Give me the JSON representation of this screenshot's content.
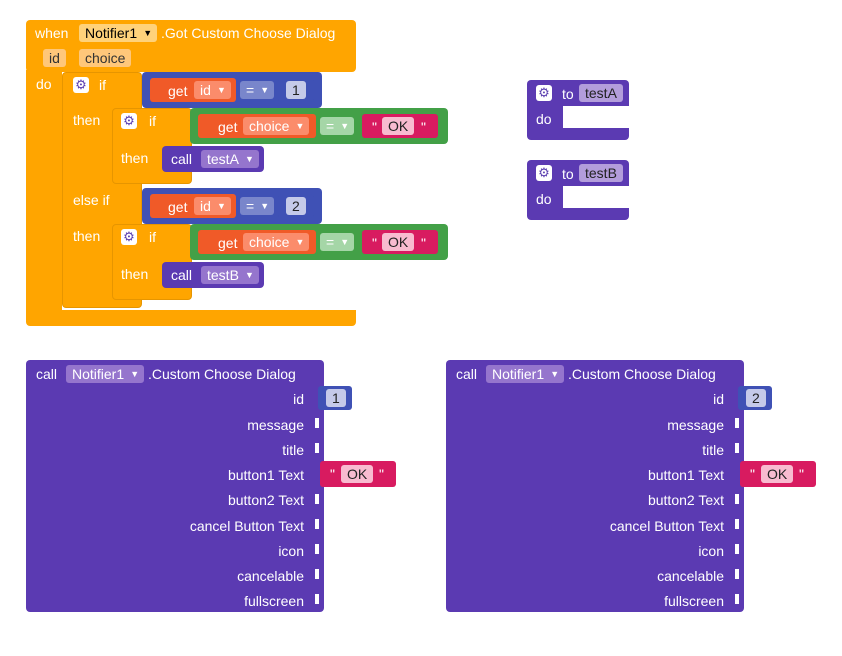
{
  "event_block": {
    "when": "when",
    "component": "Notifier1",
    "event": ".Got Custom Choose Dialog",
    "param_id": "id",
    "param_choice": "choice",
    "do": "do",
    "if_label": "if",
    "then_label": "then",
    "else_if_label": "else if",
    "get_label": "get",
    "eq": "=",
    "num1": "1",
    "num2": "2",
    "ok": "OK",
    "call_label": "call",
    "testA": "testA",
    "testB": "testB"
  },
  "proc_a": {
    "to": "to",
    "name": "testA",
    "do": "do"
  },
  "proc_b": {
    "to": "to",
    "name": "testB",
    "do": "do"
  },
  "call_blocks": [
    {
      "call": "call",
      "component": "Notifier1",
      "method": ".Custom Choose Dialog",
      "id_value": "1",
      "button1_text": "OK",
      "sockets": [
        "id",
        "message",
        "title",
        "button1 Text",
        "button2 Text",
        "cancel Button Text",
        "icon",
        "cancelable",
        "fullscreen"
      ]
    },
    {
      "call": "call",
      "component": "Notifier1",
      "method": ".Custom Choose Dialog",
      "id_value": "2",
      "button1_text": "OK",
      "sockets": [
        "id",
        "message",
        "title",
        "button1 Text",
        "button2 Text",
        "cancel Button Text",
        "icon",
        "cancelable",
        "fullscreen"
      ]
    }
  ],
  "colors": {
    "event": "#ffa500",
    "procedure": "#5b3ab2",
    "variable_get": "#f05a28",
    "logic_compare": "#43a047",
    "text": "#d81b60",
    "math": "#3f51b5"
  },
  "icons": {
    "mutator": "gear-icon",
    "dropdown": "triangle-down-icon"
  }
}
